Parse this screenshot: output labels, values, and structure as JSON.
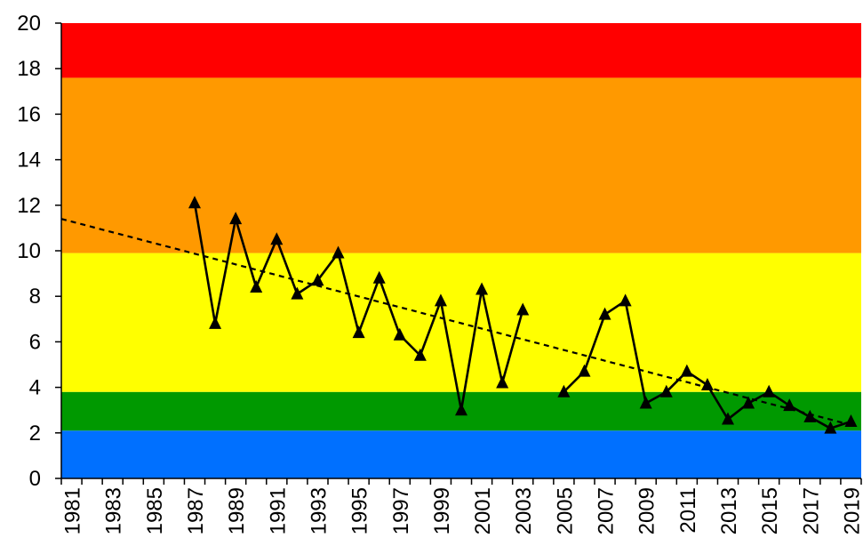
{
  "chart_data": {
    "type": "line",
    "title": "",
    "xlabel": "",
    "ylabel": "",
    "x": [
      1987,
      1988,
      1989,
      1990,
      1991,
      1992,
      1993,
      1994,
      1995,
      1996,
      1997,
      1998,
      1999,
      2000,
      2001,
      2002,
      2003,
      2004,
      2005,
      2006,
      2007,
      2008,
      2009,
      2010,
      2011,
      2012,
      2013,
      2014,
      2015,
      2016,
      2017,
      2018,
      2019
    ],
    "series": [
      {
        "values": [
          12.1,
          6.8,
          11.4,
          8.4,
          10.5,
          8.1,
          8.7,
          9.9,
          6.4,
          8.8,
          6.3,
          5.4,
          7.8,
          3.0,
          8.3,
          4.2,
          7.4,
          null,
          3.8,
          4.7,
          7.2,
          7.8,
          3.3,
          3.8,
          4.7,
          4.1,
          2.6,
          3.3,
          3.8,
          3.2,
          2.7,
          2.2,
          2.5
        ],
        "marker": "triangle",
        "color": "#000000"
      }
    ],
    "trendline": {
      "style": "dashed",
      "x": [
        1981,
        2019
      ],
      "y": [
        11.4,
        2.35
      ]
    },
    "bands": [
      {
        "from": 0,
        "to": 2.1,
        "color": "#0070FF"
      },
      {
        "from": 2.1,
        "to": 3.8,
        "color": "#009900"
      },
      {
        "from": 3.8,
        "to": 9.9,
        "color": "#FFFF00"
      },
      {
        "from": 9.9,
        "to": 17.6,
        "color": "#FF9900"
      },
      {
        "from": 17.6,
        "to": 20,
        "color": "#FF0000"
      }
    ],
    "xlim": [
      1981,
      2019
    ],
    "ylim": [
      0,
      20
    ],
    "yticks": [
      "0",
      "2",
      "4",
      "6",
      "8",
      "10",
      "12",
      "14",
      "16",
      "18",
      "20"
    ],
    "xtick_labels": [
      "1981",
      "1983",
      "1985",
      "1987",
      "1989",
      "1991",
      "1993",
      "1995",
      "1997",
      "1999",
      "2001",
      "2003",
      "2005",
      "2007",
      "2009",
      "2011",
      "2013",
      "2015",
      "2017",
      "2019"
    ],
    "grid": false,
    "legend": "none"
  }
}
